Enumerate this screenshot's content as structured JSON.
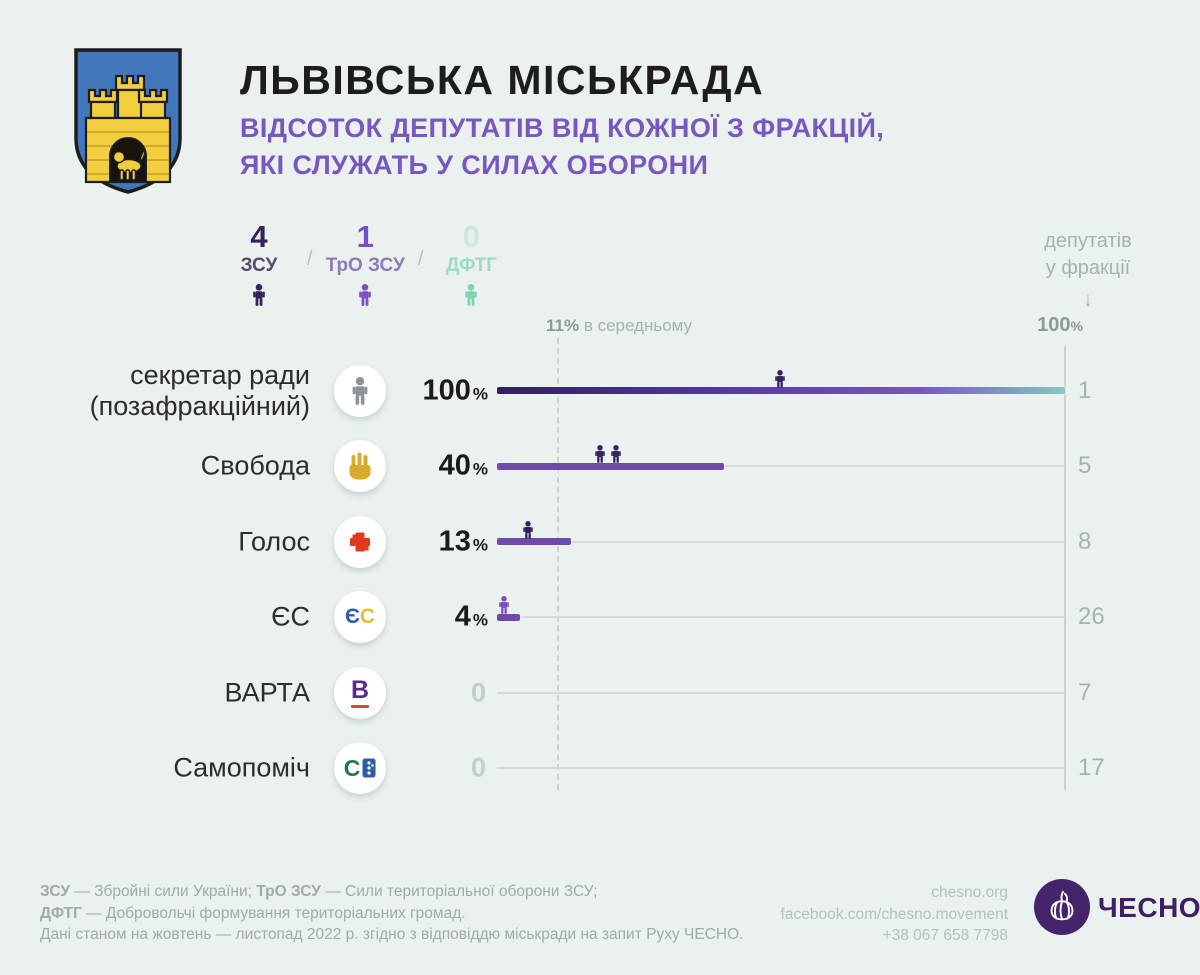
{
  "page": {
    "background": "#eaf1ef"
  },
  "header": {
    "title": "ЛЬВІВСЬКА МІСЬКРАДА",
    "subtitle_line1": "ВІДСОТОК ДЕПУТАТІВ ВІД КОЖНОЇ З ФРАКЦІЙ,",
    "subtitle_line2": "ЯКІ СЛУЖАТЬ У СИЛАХ ОБОРОНИ",
    "coat_of_arms_icon": "lviv-city-coat-of-arms"
  },
  "legend": {
    "separator": "/",
    "items": [
      {
        "count": "4",
        "label": "ЗСУ",
        "count_color": "#35215c",
        "label_color": "#554a70",
        "icon_color": "#35215c",
        "icon": "person-icon"
      },
      {
        "count": "1",
        "label": "ТрО ЗСУ",
        "count_color": "#7b4ec4",
        "label_color": "#8a7cb8",
        "icon_color": "#7b4ec4",
        "icon": "person-icon"
      },
      {
        "count": "0",
        "label": "ДФТГ",
        "count_color": "#cde9dc",
        "label_color": "#9adcc2",
        "icon_color": "#7fd3ae",
        "icon": "person-icon"
      }
    ]
  },
  "axis": {
    "right_header_line1": "депутатів",
    "right_header_line2": "у фракції",
    "arrow": "↓",
    "average_num": "11%",
    "average_rest": " в середньому",
    "max_num": "100",
    "max_sign": "%"
  },
  "rows": [
    {
      "label": "секретар ради (позафракційний)",
      "icon": "person-icon",
      "pct_num": "100",
      "pct_sign": "%",
      "value": 100,
      "seats": "1",
      "markers": [
        {
          "pos": 49.8,
          "force": "zsu"
        }
      ]
    },
    {
      "label": "Свобода",
      "icon": "svoboda-hand-icon",
      "pct_num": "40",
      "pct_sign": "%",
      "value": 40,
      "seats": "5",
      "markers": [
        {
          "pos": 18.1,
          "force": "zsu"
        },
        {
          "pos": 20.9,
          "force": "zsu"
        }
      ]
    },
    {
      "label": "Голос",
      "icon": "holos-splat-icon",
      "pct_num": "13",
      "pct_sign": "%",
      "value": 13,
      "seats": "8",
      "markers": [
        {
          "pos": 5.5,
          "force": "zsu"
        }
      ]
    },
    {
      "label": "ЄС",
      "icon": "european-solidarity-icon",
      "icon_letters": {
        "l1": "Є",
        "l2": "С"
      },
      "pct_num": "4",
      "pct_sign": "%",
      "value": 4,
      "seats": "26",
      "markers": [
        {
          "pos": 1.2,
          "force": "tro"
        }
      ]
    },
    {
      "label": "ВАРТА",
      "icon": "varta-icon",
      "icon_letter": "В",
      "pct_num": "0",
      "pct_sign": "",
      "value": 0,
      "seats": "7",
      "markers": []
    },
    {
      "label": "Самопоміч",
      "icon": "samopomich-icon",
      "icon_letter": "С",
      "pct_num": "0",
      "pct_sign": "",
      "value": 0,
      "seats": "17",
      "markers": []
    }
  ],
  "footer": {
    "l1t1": "ЗСУ",
    "l1r1": " — Збройні сили України; ",
    "l1t2": "ТрО ЗСУ",
    "l1r2": " — Сили територіальної оборони ЗСУ;",
    "l2t1": "ДФТГ",
    "l2r1": " — Добровольчі формування територіальних громад.",
    "l3": "Дані станом на жовтень — листопад 2022 р. згідно з відповіддю міськради на запит Руху ЧЕСНО."
  },
  "contacts": {
    "site": "chesno.org",
    "facebook": "facebook.com/chesno.movement",
    "phone": "+38 067 658 7798",
    "logo_text": "ЧЕСНО",
    "logo_icon": "chesno-garlic-icon"
  },
  "colors": {
    "bg": "#eaf1ef",
    "accent": "#7857c0",
    "bar": "#6f4aab",
    "zsu": "#35215c",
    "tro": "#7b4ec4",
    "dftg": "#7fd3ae",
    "gray_text": "#a6b2b1",
    "gray_dark": "#8d9a99",
    "track": "#d3dcda",
    "axis": "#c9d3d1",
    "zero": "#c3cdcc",
    "chesno": "#44246a",
    "svoboda": "#d9ab2c",
    "holos": "#e0391c",
    "es_blue": "#3157a8",
    "es_yellow": "#e6c02f",
    "varta": "#5a2b8e",
    "varta_red": "#d04a3e",
    "samopomich_green": "#1f7a4d",
    "samopomich_blue": "#2f5da8",
    "coat_blue": "#4377bb",
    "coat_gold": "#f3cf3e"
  },
  "chart_data": {
    "type": "bar",
    "orientation": "horizontal",
    "title": "ЛЬВІВСЬКА МІСЬКРАДА",
    "subtitle": "Відсоток депутатів від кожної з фракцій, які служать у силах оборони",
    "categories": [
      "секретар ради (позафракційний)",
      "Свобода",
      "Голос",
      "ЄС",
      "ВАРТА",
      "Самопоміч"
    ],
    "values": [
      100,
      40,
      13,
      4,
      0,
      0
    ],
    "value_unit": "%",
    "faction_seat_counts": [
      1,
      5,
      8,
      26,
      7,
      17
    ],
    "serving_by_force": {
      "ЗСУ": 4,
      "ТрО ЗСУ": 1,
      "ДФТГ": 0
    },
    "reference_line": {
      "value": 11,
      "label": "11% в середньому"
    },
    "xlim": [
      0,
      100
    ],
    "right_axis_label": "депутатів у фракції",
    "grid": false,
    "legend_position": "top-left"
  }
}
